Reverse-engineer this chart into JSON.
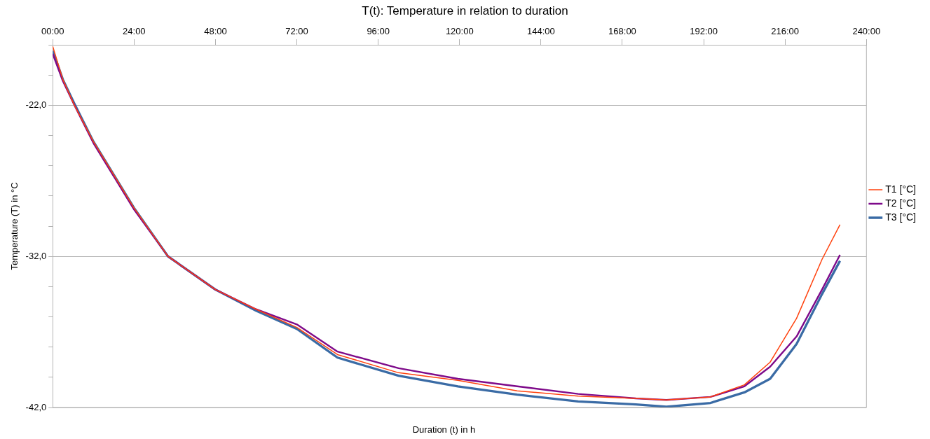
{
  "chart_data": {
    "type": "line",
    "title": "T(t): Temperature in relation to duration",
    "xlabel": "Duration (t) in h",
    "ylabel": "Temperature (T) in °C",
    "x": [
      0,
      3,
      6.4,
      12,
      18,
      24,
      34,
      48,
      60,
      72,
      84,
      102,
      119.5,
      137,
      155,
      172,
      181,
      194,
      204,
      211.6,
      219.4,
      226.9,
      232.2
    ],
    "series": [
      {
        "name": "T1 [°C]",
        "color": "#ff420e",
        "values": [
          -18.1,
          -20.3,
          -22,
          -24.4,
          -26.6,
          -28.8,
          -32,
          -34.2,
          -35.5,
          -36.7,
          -38.5,
          -39.7,
          -40.2,
          -40.9,
          -41.25,
          -41.4,
          -41.5,
          -41.3,
          -40.5,
          -39,
          -36.1,
          -32.2,
          -29.9
        ]
      },
      {
        "name": "T2 [°C]",
        "color": "#7e0a8a",
        "values": [
          -18.6,
          -20.4,
          -22,
          -24.5,
          -26.7,
          -28.9,
          -32,
          -34.2,
          -35.5,
          -36.5,
          -38.3,
          -39.4,
          -40.1,
          -40.6,
          -41.1,
          -41.4,
          -41.5,
          -41.3,
          -40.6,
          -39.3,
          -37.3,
          -34.2,
          -31.9
        ]
      },
      {
        "name": "T3 [°C]",
        "color": "#3a6ba5",
        "values": [
          -18.4,
          -20.3,
          -21.9,
          -24.4,
          -26.6,
          -28.8,
          -32,
          -34.2,
          -35.6,
          -36.8,
          -38.7,
          -39.9,
          -40.6,
          -41.15,
          -41.6,
          -41.8,
          -41.95,
          -41.7,
          -41,
          -40.1,
          -37.8,
          -34.5,
          -32.3
        ]
      }
    ],
    "xlim": [
      0,
      240
    ],
    "xticks": [
      {
        "value": 0,
        "label": "00:00"
      },
      {
        "value": 24,
        "label": "24:00"
      },
      {
        "value": 48,
        "label": "48:00"
      },
      {
        "value": 72,
        "label": "72:00"
      },
      {
        "value": 96,
        "label": "96:00"
      },
      {
        "value": 120,
        "label": "120:00"
      },
      {
        "value": 144,
        "label": "144:00"
      },
      {
        "value": 168,
        "label": "168:00"
      },
      {
        "value": 192,
        "label": "192:00"
      },
      {
        "value": 216,
        "label": "216:00"
      },
      {
        "value": 240,
        "label": "240:00"
      }
    ],
    "ylim": [
      -42,
      -18
    ],
    "yticks": [
      {
        "value": -42,
        "label": "-42,0"
      },
      {
        "value": -40,
        "label": null
      },
      {
        "value": -38,
        "label": null
      },
      {
        "value": -36,
        "label": null
      },
      {
        "value": -34,
        "label": null
      },
      {
        "value": -32,
        "label": "-32,0"
      },
      {
        "value": -30,
        "label": null
      },
      {
        "value": -28,
        "label": null
      },
      {
        "value": -26,
        "label": null
      },
      {
        "value": -24,
        "label": null
      },
      {
        "value": -22,
        "label": "-22,0"
      },
      {
        "value": -20,
        "label": null
      },
      {
        "value": -18,
        "label": null
      }
    ],
    "grid": "y",
    "legend": "right",
    "marker": "none",
    "line_style": "solid"
  }
}
